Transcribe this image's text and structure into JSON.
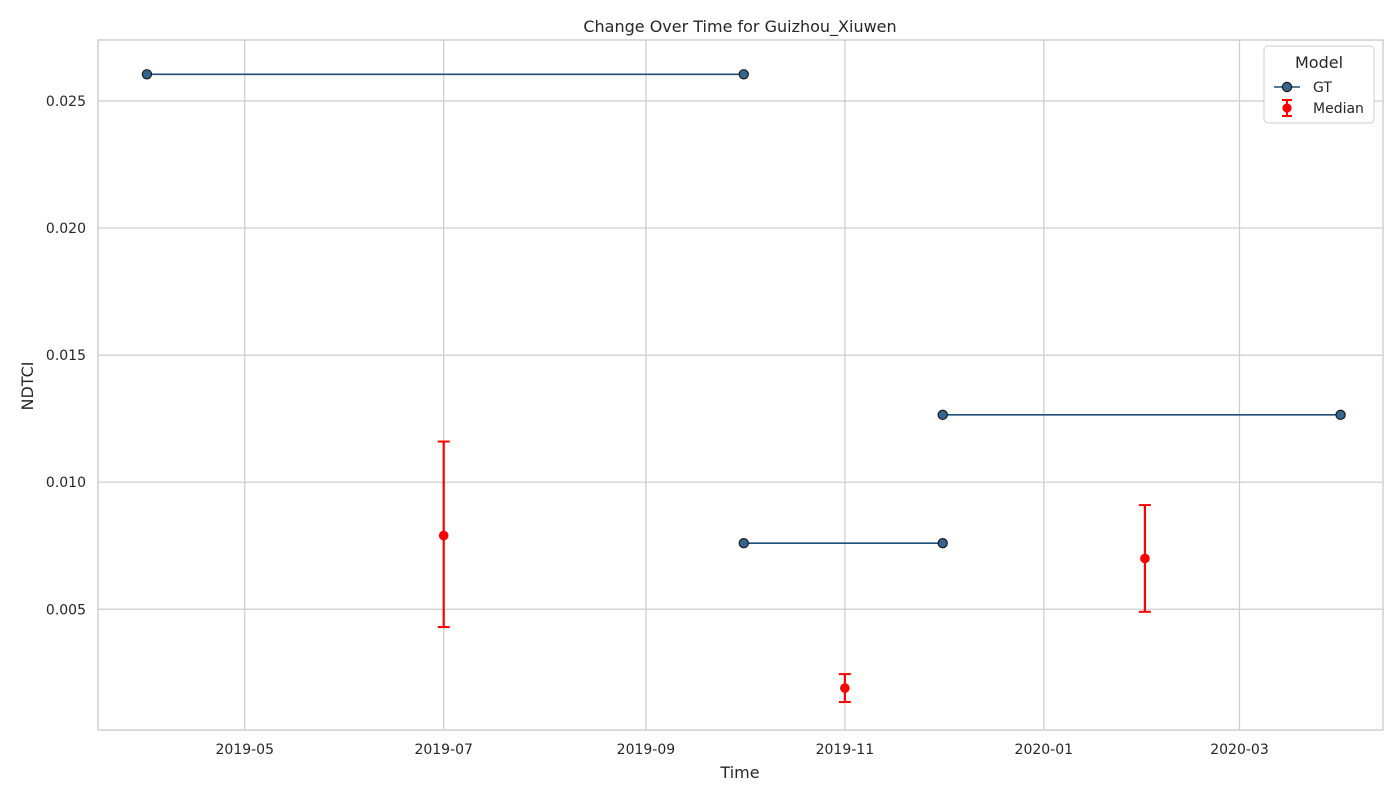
{
  "chart_data": {
    "type": "line",
    "title": "Change Over Time for Guizhou_Xiuwen",
    "xlabel": "Time",
    "ylabel": "NDTCI",
    "x_domain": [
      "2019-03-17",
      "2020-04-14"
    ],
    "ylim": [
      0.00025,
      0.0274
    ],
    "grid": true,
    "legend_position": "top-right",
    "xticks": [
      {
        "date": "2019-05-01",
        "label": "2019-05"
      },
      {
        "date": "2019-07-01",
        "label": "2019-07"
      },
      {
        "date": "2019-09-01",
        "label": "2019-09"
      },
      {
        "date": "2019-11-01",
        "label": "2019-11"
      },
      {
        "date": "2020-01-01",
        "label": "2020-01"
      },
      {
        "date": "2020-03-01",
        "label": "2020-03"
      }
    ],
    "yticks": [
      {
        "value": 0.005,
        "label": "0.005"
      },
      {
        "value": 0.01,
        "label": "0.010"
      },
      {
        "value": 0.015,
        "label": "0.015"
      },
      {
        "value": 0.02,
        "label": "0.020"
      },
      {
        "value": 0.025,
        "label": "0.025"
      }
    ],
    "legend": {
      "title": "Model",
      "entries": [
        {
          "key": "gt",
          "label": "GT"
        },
        {
          "key": "median",
          "label": "Median"
        }
      ]
    },
    "gt_segments": [
      {
        "x": [
          "2019-04-01",
          "2019-10-01"
        ],
        "y": [
          0.02605,
          0.02605
        ]
      },
      {
        "x": [
          "2019-10-01",
          "2019-12-01"
        ],
        "y": [
          0.0076,
          0.0076
        ]
      },
      {
        "x": [
          "2019-12-01",
          "2020-04-01"
        ],
        "y": [
          0.01265,
          0.01265
        ]
      }
    ],
    "median_points": [
      {
        "x": "2019-07-01",
        "y": 0.0079,
        "ymin": 0.0043,
        "ymax": 0.0116
      },
      {
        "x": "2019-11-01",
        "y": 0.0019,
        "ymin": 0.00135,
        "ymax": 0.00245
      },
      {
        "x": "2020-02-01",
        "y": 0.007,
        "ymin": 0.0049,
        "ymax": 0.0091
      }
    ],
    "colors": {
      "gt_line": "#1f4e79",
      "gt_marker": "#34658f",
      "gt_marker_edge": "#1a1a1a",
      "median": "#ff0000",
      "grid": "#cccccc",
      "axes": "#cccccc"
    }
  }
}
